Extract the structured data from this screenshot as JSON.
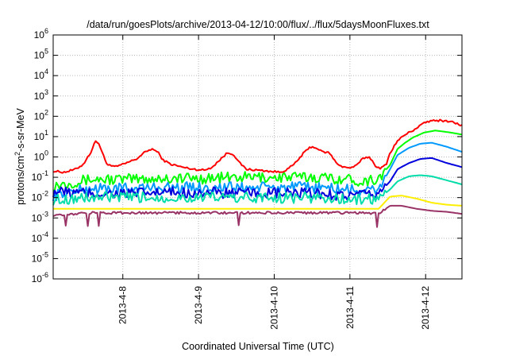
{
  "chart_data": {
    "type": "line",
    "title": "/data/run/goesPlots/archive/2013-04-12/10:00/flux/../flux/5daysMoonFluxes.txt",
    "xlabel": "Coordinated Universal Time (UTC)",
    "ylabel": {
      "prefix": "protons/cm",
      "superscript": "2",
      "suffix": "-s-sr-MeV"
    },
    "yscale": "log",
    "ylim": [
      -6,
      6
    ],
    "y_ticks": [
      {
        "base": "10",
        "exp": "-6",
        "value": -6
      },
      {
        "base": "10",
        "exp": "-5",
        "value": -5
      },
      {
        "base": "10",
        "exp": "-4",
        "value": -4
      },
      {
        "base": "10",
        "exp": "-3",
        "value": -3
      },
      {
        "base": "10",
        "exp": "-2",
        "value": -2
      },
      {
        "base": "10",
        "exp": "-1",
        "value": -1
      },
      {
        "base": "10",
        "exp": "0",
        "value": 0
      },
      {
        "base": "10",
        "exp": "1",
        "value": 1
      },
      {
        "base": "10",
        "exp": "2",
        "value": 2
      },
      {
        "base": "10",
        "exp": "3",
        "value": 3
      },
      {
        "base": "10",
        "exp": "4",
        "value": 4
      },
      {
        "base": "10",
        "exp": "5",
        "value": 5
      },
      {
        "base": "10",
        "exp": "6",
        "value": 6
      }
    ],
    "xlim": [
      0,
      5.4
    ],
    "x_ticks": [
      {
        "label": "2013-4-8",
        "value": 0.92
      },
      {
        "label": "2013-4-9",
        "value": 1.92
      },
      {
        "label": "2013-4-10",
        "value": 2.92
      },
      {
        "label": "2013-4-11",
        "value": 3.92
      },
      {
        "label": "2013-4-12",
        "value": 4.92
      }
    ],
    "grid": true,
    "series": [
      {
        "color": "#ff0000",
        "points": [
          [
            0.0,
            -0.7
          ],
          [
            0.15,
            -0.75
          ],
          [
            0.3,
            -0.6
          ],
          [
            0.4,
            -0.35
          ],
          [
            0.5,
            0.25
          ],
          [
            0.55,
            0.75
          ],
          [
            0.6,
            0.7
          ],
          [
            0.65,
            0.2
          ],
          [
            0.7,
            -0.3
          ],
          [
            0.8,
            -0.5
          ],
          [
            0.9,
            -0.4
          ],
          [
            1.0,
            -0.25
          ],
          [
            1.1,
            -0.1
          ],
          [
            1.2,
            0.2
          ],
          [
            1.3,
            0.4
          ],
          [
            1.38,
            0.25
          ],
          [
            1.45,
            -0.15
          ],
          [
            1.55,
            -0.35
          ],
          [
            1.7,
            -0.5
          ],
          [
            1.85,
            -0.6
          ],
          [
            2.0,
            -0.65
          ],
          [
            2.1,
            -0.5
          ],
          [
            2.2,
            -0.15
          ],
          [
            2.3,
            0.2
          ],
          [
            2.38,
            0.15
          ],
          [
            2.45,
            -0.25
          ],
          [
            2.55,
            -0.6
          ],
          [
            2.7,
            -0.65
          ],
          [
            2.85,
            -0.7
          ],
          [
            3.0,
            -0.75
          ],
          [
            3.1,
            -0.6
          ],
          [
            3.2,
            -0.3
          ],
          [
            3.3,
            0.15
          ],
          [
            3.4,
            0.5
          ],
          [
            3.48,
            0.45
          ],
          [
            3.55,
            0.25
          ],
          [
            3.65,
            0.2
          ],
          [
            3.72,
            -0.2
          ],
          [
            3.8,
            -0.45
          ],
          [
            3.9,
            -0.55
          ],
          [
            4.0,
            -0.45
          ],
          [
            4.1,
            -0.05
          ],
          [
            4.18,
            0.0
          ],
          [
            4.25,
            -0.4
          ],
          [
            4.32,
            -0.6
          ],
          [
            4.4,
            -0.35
          ],
          [
            4.45,
            0.2
          ],
          [
            4.55,
            0.8
          ],
          [
            4.65,
            1.1
          ],
          [
            4.75,
            1.3
          ],
          [
            4.85,
            1.55
          ],
          [
            4.95,
            1.75
          ],
          [
            5.1,
            1.8
          ],
          [
            5.25,
            1.75
          ],
          [
            5.4,
            1.55
          ]
        ]
      },
      {
        "color": "#00ff00",
        "points": [
          [
            0.0,
            -1.4
          ],
          [
            0.5,
            -1.1
          ],
          [
            1.0,
            -1.1
          ],
          [
            1.5,
            -1.05
          ],
          [
            2.0,
            -1.05
          ],
          [
            2.5,
            -1.0
          ],
          [
            3.0,
            -1.0
          ],
          [
            3.5,
            -1.0
          ],
          [
            3.9,
            -1.1
          ],
          [
            4.1,
            -1.2
          ],
          [
            4.3,
            -1.05
          ],
          [
            4.45,
            -0.4
          ],
          [
            4.55,
            0.4
          ],
          [
            4.65,
            0.7
          ],
          [
            4.75,
            0.95
          ],
          [
            4.9,
            1.2
          ],
          [
            5.05,
            1.3
          ],
          [
            5.25,
            1.2
          ],
          [
            5.4,
            1.1
          ]
        ]
      },
      {
        "color": "#0099ff",
        "points": [
          [
            0.0,
            -1.9
          ],
          [
            0.5,
            -1.55
          ],
          [
            1.0,
            -1.55
          ],
          [
            1.5,
            -1.5
          ],
          [
            2.0,
            -1.5
          ],
          [
            2.5,
            -1.5
          ],
          [
            3.0,
            -1.5
          ],
          [
            3.5,
            -1.5
          ],
          [
            3.9,
            -1.6
          ],
          [
            4.1,
            -1.7
          ],
          [
            4.3,
            -1.6
          ],
          [
            4.45,
            -0.6
          ],
          [
            4.55,
            0.1
          ],
          [
            4.7,
            0.45
          ],
          [
            4.85,
            0.65
          ],
          [
            5.0,
            0.7
          ],
          [
            5.2,
            0.5
          ],
          [
            5.4,
            0.25
          ]
        ]
      },
      {
        "color": "#0000dd",
        "points": [
          [
            0.0,
            -1.7
          ],
          [
            0.5,
            -1.8
          ],
          [
            1.0,
            -1.8
          ],
          [
            1.5,
            -1.75
          ],
          [
            2.0,
            -1.75
          ],
          [
            2.5,
            -1.8
          ],
          [
            3.0,
            -1.8
          ],
          [
            3.5,
            -1.8
          ],
          [
            3.9,
            -1.9
          ],
          [
            4.1,
            -1.9
          ],
          [
            4.3,
            -1.8
          ],
          [
            4.45,
            -1.2
          ],
          [
            4.55,
            -0.6
          ],
          [
            4.7,
            -0.3
          ],
          [
            4.85,
            -0.1
          ],
          [
            5.0,
            -0.05
          ],
          [
            5.2,
            -0.3
          ],
          [
            5.4,
            -0.5
          ]
        ]
      },
      {
        "color": "#00ddaa",
        "points": [
          [
            0.0,
            -2.1
          ],
          [
            0.5,
            -2.0
          ],
          [
            1.0,
            -2.0
          ],
          [
            1.5,
            -2.0
          ],
          [
            2.0,
            -2.0
          ],
          [
            2.5,
            -2.0
          ],
          [
            3.0,
            -2.0
          ],
          [
            3.5,
            -2.0
          ],
          [
            3.9,
            -2.1
          ],
          [
            4.1,
            -2.1
          ],
          [
            4.3,
            -2.05
          ],
          [
            4.45,
            -1.6
          ],
          [
            4.55,
            -1.2
          ],
          [
            4.7,
            -0.95
          ],
          [
            4.85,
            -0.9
          ],
          [
            5.0,
            -0.95
          ],
          [
            5.2,
            -1.15
          ],
          [
            5.4,
            -1.35
          ]
        ]
      },
      {
        "color": "#ffee00",
        "points": [
          [
            0.0,
            -2.55
          ],
          [
            1.0,
            -2.55
          ],
          [
            2.0,
            -2.55
          ],
          [
            3.0,
            -2.55
          ],
          [
            4.0,
            -2.55
          ],
          [
            4.3,
            -2.55
          ],
          [
            4.45,
            -1.95
          ],
          [
            4.6,
            -1.9
          ],
          [
            4.8,
            -2.05
          ],
          [
            5.0,
            -2.25
          ],
          [
            5.2,
            -2.35
          ],
          [
            5.4,
            -2.4
          ]
        ]
      },
      {
        "color": "#993366",
        "points": [
          [
            0.0,
            -2.85
          ],
          [
            0.5,
            -2.75
          ],
          [
            1.0,
            -2.75
          ],
          [
            1.5,
            -2.75
          ],
          [
            2.0,
            -2.75
          ],
          [
            2.5,
            -2.75
          ],
          [
            3.0,
            -2.75
          ],
          [
            3.5,
            -2.75
          ],
          [
            4.0,
            -2.75
          ],
          [
            4.3,
            -2.8
          ],
          [
            4.45,
            -2.4
          ],
          [
            4.6,
            -2.4
          ],
          [
            4.8,
            -2.55
          ],
          [
            5.0,
            -2.65
          ],
          [
            5.2,
            -2.7
          ],
          [
            5.4,
            -2.8
          ]
        ]
      }
    ]
  }
}
